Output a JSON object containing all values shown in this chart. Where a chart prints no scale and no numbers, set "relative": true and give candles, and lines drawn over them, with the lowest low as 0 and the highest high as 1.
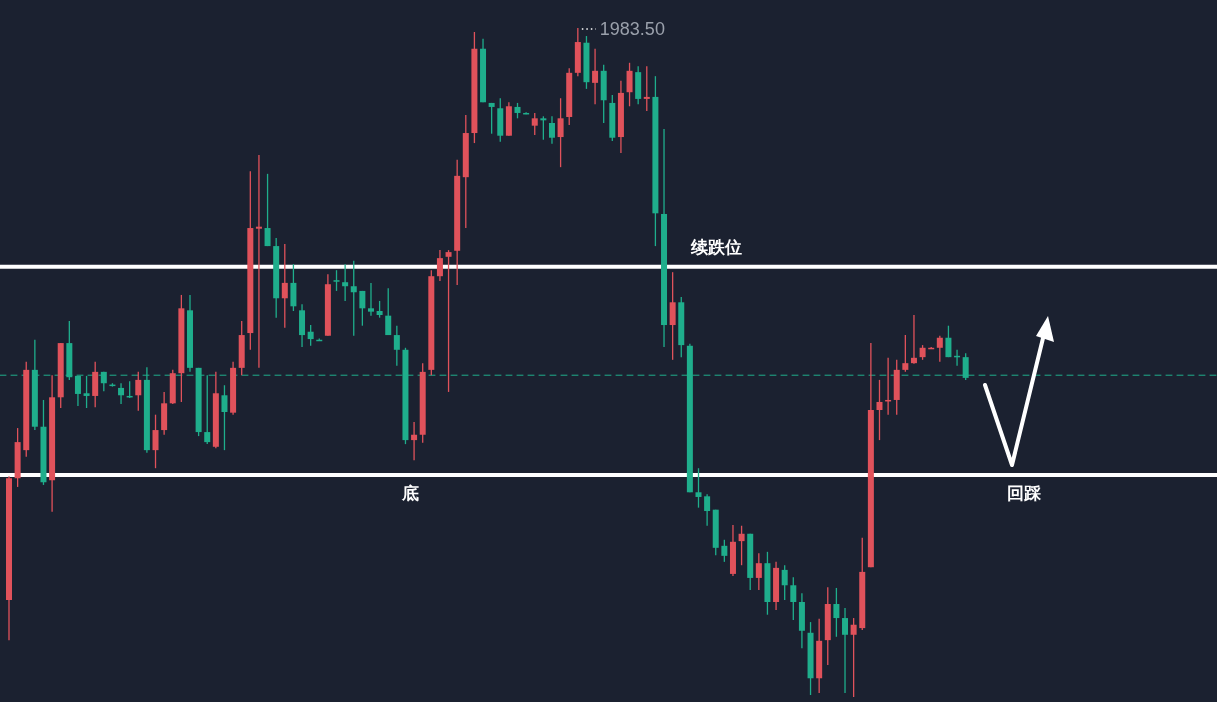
{
  "chart_data": {
    "type": "candlestick",
    "relative": true,
    "categories": [
      null,
      null,
      null,
      null,
      null,
      null,
      null,
      null,
      null,
      null,
      null,
      null,
      null,
      null,
      null,
      null,
      null,
      null,
      null,
      null,
      null,
      null,
      null,
      null,
      null,
      null,
      null,
      null,
      null,
      null,
      null,
      null,
      null,
      null,
      null,
      null,
      null,
      null,
      null,
      null,
      null,
      null,
      null,
      null,
      null,
      null,
      null,
      null,
      null,
      null,
      null,
      null,
      null,
      null,
      null,
      null,
      null,
      null,
      null,
      null,
      null,
      null,
      null,
      null,
      null,
      null,
      null,
      null,
      null,
      null,
      null,
      null,
      null,
      null,
      null,
      null,
      null,
      null,
      null,
      null,
      null,
      null,
      null,
      null,
      null,
      null,
      null,
      null,
      null,
      null,
      null,
      null,
      null,
      null,
      null,
      null,
      null,
      null,
      null,
      null,
      null,
      null,
      null,
      null,
      null,
      null,
      null,
      null,
      null,
      null,
      null,
      null,
      null,
      null,
      null,
      null,
      null,
      null,
      null,
      null,
      null,
      null,
      null,
      null,
      null,
      null,
      null,
      null,
      null,
      null,
      null,
      null,
      null,
      null,
      null,
      null,
      null,
      null,
      null,
      null
    ],
    "ohlc": [
      [
        0.145,
        0.33,
        0.085,
        0.327
      ],
      [
        0.327,
        0.402,
        0.314,
        0.381
      ],
      [
        0.369,
        0.501,
        0.359,
        0.489
      ],
      [
        0.489,
        0.534,
        0.399,
        0.404
      ],
      [
        0.404,
        0.444,
        0.317,
        0.321
      ],
      [
        0.324,
        0.481,
        0.277,
        0.448
      ],
      [
        0.448,
        0.529,
        0.432,
        0.529
      ],
      [
        0.529,
        0.562,
        0.474,
        0.478
      ],
      [
        0.48,
        0.48,
        0.435,
        0.453
      ],
      [
        0.454,
        0.48,
        0.432,
        0.45
      ],
      [
        0.45,
        0.501,
        0.433,
        0.486
      ],
      [
        0.486,
        0.486,
        0.457,
        0.469
      ],
      [
        0.467,
        0.469,
        0.464,
        0.466
      ],
      [
        0.462,
        0.469,
        0.438,
        0.451
      ],
      [
        0.45,
        0.472,
        0.447,
        0.448
      ],
      [
        0.451,
        0.486,
        0.428,
        0.474
      ],
      [
        0.474,
        0.493,
        0.365,
        0.369
      ],
      [
        0.369,
        0.422,
        0.342,
        0.399
      ],
      [
        0.399,
        0.456,
        0.392,
        0.439
      ],
      [
        0.439,
        0.489,
        0.438,
        0.484
      ],
      [
        0.484,
        0.601,
        0.441,
        0.581
      ],
      [
        0.578,
        0.601,
        0.486,
        0.492
      ],
      [
        0.492,
        0.492,
        0.39,
        0.396
      ],
      [
        0.396,
        0.481,
        0.378,
        0.381
      ],
      [
        0.374,
        0.486,
        0.372,
        0.454
      ],
      [
        0.451,
        0.466,
        0.369,
        0.426
      ],
      [
        0.425,
        0.501,
        0.422,
        0.492
      ],
      [
        0.492,
        0.562,
        0.481,
        0.541
      ],
      [
        0.544,
        0.786,
        0.519,
        0.701
      ],
      [
        0.7,
        0.81,
        0.492,
        0.703
      ],
      [
        0.701,
        0.782,
        0.674,
        0.674
      ],
      [
        0.674,
        0.686,
        0.567,
        0.596
      ],
      [
        0.596,
        0.677,
        0.552,
        0.619
      ],
      [
        0.619,
        0.647,
        0.577,
        0.584
      ],
      [
        0.578,
        0.587,
        0.523,
        0.541
      ],
      [
        0.546,
        0.556,
        0.525,
        0.535
      ],
      [
        0.534,
        0.536,
        0.532,
        0.533
      ],
      [
        0.54,
        0.632,
        0.54,
        0.617
      ],
      [
        0.623,
        0.638,
        0.607,
        0.622
      ],
      [
        0.62,
        0.647,
        0.592,
        0.614
      ],
      [
        0.614,
        0.652,
        0.54,
        0.605
      ],
      [
        0.607,
        0.607,
        0.555,
        0.581
      ],
      [
        0.581,
        0.619,
        0.57,
        0.576
      ],
      [
        0.577,
        0.592,
        0.567,
        0.571
      ],
      [
        0.57,
        0.611,
        0.541,
        0.541
      ],
      [
        0.541,
        0.555,
        0.495,
        0.519
      ],
      [
        0.519,
        0.522,
        0.378,
        0.384
      ],
      [
        0.384,
        0.411,
        0.354,
        0.392
      ],
      [
        0.392,
        0.499,
        0.38,
        0.486
      ],
      [
        0.489,
        0.638,
        0.481,
        0.629
      ],
      [
        0.629,
        0.668,
        0.622,
        0.656
      ],
      [
        0.658,
        0.668,
        0.456,
        0.665
      ],
      [
        0.667,
        0.803,
        0.616,
        0.779
      ],
      [
        0.777,
        0.87,
        0.701,
        0.843
      ],
      [
        0.843,
        0.994,
        0.828,
        0.969
      ],
      [
        0.969,
        0.984,
        0.889,
        0.889
      ],
      [
        0.888,
        0.888,
        0.842,
        0.882
      ],
      [
        0.88,
        0.895,
        0.83,
        0.839
      ],
      [
        0.839,
        0.889,
        0.839,
        0.883
      ],
      [
        0.882,
        0.888,
        0.865,
        0.873
      ],
      [
        0.873,
        0.874,
        0.871,
        0.872
      ],
      [
        0.854,
        0.873,
        0.84,
        0.865
      ],
      [
        0.865,
        0.868,
        0.833,
        0.862
      ],
      [
        0.858,
        0.868,
        0.827,
        0.836
      ],
      [
        0.837,
        0.895,
        0.792,
        0.865
      ],
      [
        0.867,
        0.94,
        0.855,
        0.933
      ],
      [
        0.933,
        1,
        0.928,
        0.979
      ],
      [
        0.978,
        0.988,
        0.909,
        0.919
      ],
      [
        0.918,
        0.969,
        0.886,
        0.936
      ],
      [
        0.936,
        0.945,
        0.858,
        0.892
      ],
      [
        0.888,
        0.9,
        0.831,
        0.836
      ],
      [
        0.837,
        0.921,
        0.813,
        0.903
      ],
      [
        0.904,
        0.948,
        0.883,
        0.936
      ],
      [
        0.934,
        0.943,
        0.886,
        0.894
      ],
      [
        0.894,
        0.943,
        0.876,
        0.897
      ],
      [
        0.897,
        0.928,
        0.674,
        0.723
      ],
      [
        0.722,
        0.849,
        0.523,
        0.556
      ],
      [
        0.556,
        0.635,
        0.504,
        0.59
      ],
      [
        0.59,
        0.598,
        0.508,
        0.526
      ],
      [
        0.525,
        0.528,
        0.306,
        0.306
      ],
      [
        0.306,
        0.342,
        0.283,
        0.299
      ],
      [
        0.3,
        0.303,
        0.256,
        0.278
      ],
      [
        0.28,
        0.28,
        0.212,
        0.223
      ],
      [
        0.226,
        0.235,
        0.202,
        0.211
      ],
      [
        0.184,
        0.257,
        0.181,
        0.232
      ],
      [
        0.233,
        0.256,
        0.197,
        0.244
      ],
      [
        0.244,
        0.244,
        0.16,
        0.178
      ],
      [
        0.178,
        0.215,
        0.16,
        0.2
      ],
      [
        0.2,
        0.217,
        0.123,
        0.142
      ],
      [
        0.142,
        0.202,
        0.13,
        0.193
      ],
      [
        0.19,
        0.197,
        0.145,
        0.167
      ],
      [
        0.167,
        0.179,
        0.115,
        0.142
      ],
      [
        0.142,
        0.155,
        0.073,
        0.099
      ],
      [
        0.096,
        0.112,
        0.003,
        0.028
      ],
      [
        0.028,
        0.117,
        0.006,
        0.084
      ],
      [
        0.085,
        0.164,
        0.048,
        0.139
      ],
      [
        0.139,
        0.163,
        0.09,
        0.118
      ],
      [
        0.118,
        0.133,
        0.006,
        0.093
      ],
      [
        0.093,
        0.118,
        0,
        0.108
      ],
      [
        0.103,
        0.238,
        0.1,
        0.187
      ],
      [
        0.194,
        0.529,
        0.194,
        0.429
      ],
      [
        0.429,
        0.474,
        0.384,
        0.441
      ],
      [
        0.442,
        0.507,
        0.422,
        0.444
      ],
      [
        0.444,
        0.504,
        0.422,
        0.489
      ],
      [
        0.489,
        0.541,
        0.486,
        0.499
      ],
      [
        0.499,
        0.571,
        0.498,
        0.507
      ],
      [
        0.508,
        0.526,
        0.504,
        0.522
      ],
      [
        0.521,
        0.523,
        0.52,
        0.522
      ],
      [
        0.522,
        0.54,
        0.501,
        0.537
      ],
      [
        0.537,
        0.555,
        0.508,
        0.508
      ],
      [
        0.51,
        0.519,
        0.495,
        0.509
      ],
      [
        0.508,
        0.514,
        0.474,
        0.477
      ],
      null,
      null,
      null,
      null,
      null,
      null,
      null,
      null,
      null,
      null,
      null,
      null,
      null,
      null,
      null,
      null,
      null,
      null,
      null,
      null,
      null,
      null,
      null,
      null,
      null,
      null,
      null,
      null
    ],
    "colors": [
      "#e0525b",
      "#e0525b",
      "#e0525b",
      "#1fae8c",
      "#1fae8c",
      "#e0525b",
      "#e0525b",
      "#1fae8c",
      "#1fae8c",
      "#1fae8c",
      "#e0525b",
      "#1fae8c",
      "#1fae8c",
      "#1fae8c",
      "#1fae8c",
      "#e0525b",
      "#1fae8c",
      "#e0525b",
      "#e0525b",
      "#e0525b",
      "#e0525b",
      "#1fae8c",
      "#1fae8c",
      "#1fae8c",
      "#e0525b",
      "#1fae8c",
      "#e0525b",
      "#e0525b",
      "#e0525b",
      "#e0525b",
      "#1fae8c",
      "#1fae8c",
      "#e0525b",
      "#1fae8c",
      "#1fae8c",
      "#1fae8c",
      "#1fae8c",
      "#e0525b",
      "#1fae8c",
      "#1fae8c",
      "#1fae8c",
      "#1fae8c",
      "#1fae8c",
      "#1fae8c",
      "#1fae8c",
      "#1fae8c",
      "#1fae8c",
      "#e0525b",
      "#e0525b",
      "#e0525b",
      "#e0525b",
      "#e0525b",
      "#e0525b",
      "#e0525b",
      "#e0525b",
      "#1fae8c",
      "#1fae8c",
      "#1fae8c",
      "#e0525b",
      "#1fae8c",
      "#1fae8c",
      "#e0525b",
      "#1fae8c",
      "#1fae8c",
      "#e0525b",
      "#e0525b",
      "#e0525b",
      "#1fae8c",
      "#e0525b",
      "#1fae8c",
      "#1fae8c",
      "#e0525b",
      "#e0525b",
      "#1fae8c",
      "#e0525b",
      "#1fae8c",
      "#1fae8c",
      "#e0525b",
      "#1fae8c",
      "#1fae8c",
      "#1fae8c",
      "#1fae8c",
      "#1fae8c",
      "#1fae8c",
      "#e0525b",
      "#e0525b",
      "#1fae8c",
      "#e0525b",
      "#1fae8c",
      "#e0525b",
      "#1fae8c",
      "#1fae8c",
      "#1fae8c",
      "#1fae8c",
      "#e0525b",
      "#e0525b",
      "#1fae8c",
      "#1fae8c",
      "#e0525b",
      "#e0525b",
      "#e0525b",
      "#e0525b",
      "#e0525b",
      "#e0525b",
      "#e0525b",
      "#e0525b",
      "#e0525b",
      "#e0525b",
      "#e0525b",
      "#1fae8c",
      "#1fae8c",
      "#1fae8c",
      null,
      null,
      null,
      null,
      null,
      null,
      null,
      null,
      null,
      null,
      null,
      null,
      null,
      null,
      null,
      null,
      null,
      null,
      null,
      null,
      null,
      null,
      null,
      null,
      null,
      null,
      null,
      null
    ],
    "ref_lines": [
      {
        "axis": "y",
        "value": 0.643,
        "label": "续跌位",
        "color": "#ffffff"
      },
      {
        "axis": "y",
        "value": 0.332,
        "label": "底",
        "color": "#ffffff"
      },
      {
        "axis": "y",
        "value": 0.481,
        "color": "#1fae8c",
        "line_style": "dashed"
      }
    ],
    "annotations": [
      "1983.50",
      "回踩"
    ]
  }
}
